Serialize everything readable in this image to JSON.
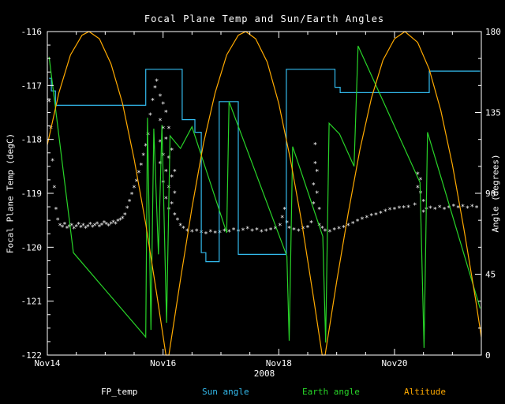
{
  "chart_data": {
    "type": "line+scatter",
    "title": "Focal Plane Temp and Sun/Earth Angles",
    "xlabel": "2008",
    "ylabel_left": "Focal Plane Temp (degC)",
    "ylabel_right": "Angle (degrees)",
    "x_unit": "days since Nov 14 2008",
    "x_range": [
      0,
      7.5
    ],
    "temp_range": [
      -122,
      -116
    ],
    "angle_range": [
      0,
      180
    ],
    "x_minor": 0.5,
    "temp_minor": 0.25,
    "angle_minor": 15,
    "x_ticks": [
      {
        "t": 0,
        "label": "Nov14"
      },
      {
        "t": 2,
        "label": "Nov16"
      },
      {
        "t": 4,
        "label": "Nov18"
      },
      {
        "t": 6,
        "label": "Nov20"
      }
    ],
    "left_ticks": [
      -116,
      -117,
      -118,
      -119,
      -120,
      -121,
      -122
    ],
    "right_ticks": [
      0,
      45,
      90,
      135,
      180
    ],
    "colors": {
      "background": "#000000",
      "axis": "#ffffff"
    },
    "grid": false,
    "legend_position": "bottom",
    "series": [
      {
        "name": "FP_temp",
        "type": "scatter",
        "marker": "*",
        "axis": "temp",
        "color": "#ffffff",
        "points": [
          [
            0.03,
            -117.3
          ],
          [
            0.06,
            -117.8
          ],
          [
            0.09,
            -118.4
          ],
          [
            0.12,
            -118.9
          ],
          [
            0.15,
            -119.3
          ],
          [
            0.18,
            -119.5
          ],
          [
            0.22,
            -119.6
          ],
          [
            0.26,
            -119.63
          ],
          [
            0.3,
            -119.58
          ],
          [
            0.34,
            -119.65
          ],
          [
            0.38,
            -119.62
          ],
          [
            0.42,
            -119.6
          ],
          [
            0.46,
            -119.66
          ],
          [
            0.5,
            -119.62
          ],
          [
            0.54,
            -119.58
          ],
          [
            0.58,
            -119.64
          ],
          [
            0.62,
            -119.6
          ],
          [
            0.66,
            -119.65
          ],
          [
            0.7,
            -119.62
          ],
          [
            0.74,
            -119.58
          ],
          [
            0.78,
            -119.63
          ],
          [
            0.82,
            -119.6
          ],
          [
            0.86,
            -119.57
          ],
          [
            0.9,
            -119.62
          ],
          [
            0.94,
            -119.59
          ],
          [
            0.98,
            -119.55
          ],
          [
            1.02,
            -119.58
          ],
          [
            1.06,
            -119.61
          ],
          [
            1.1,
            -119.57
          ],
          [
            1.14,
            -119.54
          ],
          [
            1.18,
            -119.57
          ],
          [
            1.22,
            -119.52
          ],
          [
            1.26,
            -119.5
          ],
          [
            1.3,
            -119.47
          ],
          [
            1.34,
            -119.4
          ],
          [
            1.38,
            -119.28
          ],
          [
            1.42,
            -119.15
          ],
          [
            1.46,
            -119.02
          ],
          [
            1.5,
            -118.9
          ],
          [
            1.54,
            -118.78
          ],
          [
            1.58,
            -118.62
          ],
          [
            1.62,
            -118.48
          ],
          [
            1.66,
            -118.3
          ],
          [
            1.7,
            -118.12
          ],
          [
            1.74,
            -117.92
          ],
          [
            1.78,
            -117.55
          ],
          [
            1.82,
            -117.28
          ],
          [
            1.86,
            -117.05
          ],
          [
            1.89,
            -116.92
          ],
          [
            1.95,
            -117.2
          ],
          [
            1.95,
            -117.65
          ],
          [
            1.95,
            -118.05
          ],
          [
            1.95,
            -118.45
          ],
          [
            2.0,
            -117.35
          ],
          [
            2.0,
            -117.8
          ],
          [
            2.0,
            -118.3
          ],
          [
            2.0,
            -118.8
          ],
          [
            2.05,
            -117.5
          ],
          [
            2.05,
            -118.0
          ],
          [
            2.05,
            -118.6
          ],
          [
            2.05,
            -119.1
          ],
          [
            2.1,
            -117.8
          ],
          [
            2.1,
            -118.35
          ],
          [
            2.1,
            -118.9
          ],
          [
            2.1,
            -119.3
          ],
          [
            2.15,
            -118.2
          ],
          [
            2.15,
            -118.7
          ],
          [
            2.15,
            -119.2
          ],
          [
            2.2,
            -118.6
          ],
          [
            2.2,
            -119.0
          ],
          [
            2.2,
            -119.4
          ],
          [
            2.25,
            -119.5
          ],
          [
            2.3,
            -119.6
          ],
          [
            2.35,
            -119.65
          ],
          [
            2.42,
            -119.7
          ],
          [
            2.5,
            -119.72
          ],
          [
            2.58,
            -119.7
          ],
          [
            2.66,
            -119.73
          ],
          [
            2.74,
            -119.75
          ],
          [
            2.82,
            -119.72
          ],
          [
            2.9,
            -119.74
          ],
          [
            2.98,
            -119.73
          ],
          [
            3.06,
            -119.7
          ],
          [
            3.14,
            -119.72
          ],
          [
            3.22,
            -119.68
          ],
          [
            3.3,
            -119.71
          ],
          [
            3.38,
            -119.69
          ],
          [
            3.46,
            -119.66
          ],
          [
            3.54,
            -119.7
          ],
          [
            3.62,
            -119.68
          ],
          [
            3.7,
            -119.72
          ],
          [
            3.78,
            -119.7
          ],
          [
            3.86,
            -119.68
          ],
          [
            3.94,
            -119.66
          ],
          [
            4.02,
            -119.6
          ],
          [
            4.06,
            -119.45
          ],
          [
            4.1,
            -119.3
          ],
          [
            4.14,
            -119.55
          ],
          [
            4.18,
            -119.65
          ],
          [
            4.26,
            -119.68
          ],
          [
            4.34,
            -119.7
          ],
          [
            4.42,
            -119.66
          ],
          [
            4.5,
            -119.64
          ],
          [
            4.56,
            -119.55
          ],
          [
            4.6,
            -119.2
          ],
          [
            4.6,
            -118.85
          ],
          [
            4.63,
            -118.45
          ],
          [
            4.63,
            -118.1
          ],
          [
            4.66,
            -118.6
          ],
          [
            4.66,
            -119.0
          ],
          [
            4.7,
            -119.3
          ],
          [
            4.7,
            -119.6
          ],
          [
            4.75,
            -119.65
          ],
          [
            4.8,
            -119.7
          ],
          [
            4.88,
            -119.72
          ],
          [
            4.96,
            -119.68
          ],
          [
            5.04,
            -119.66
          ],
          [
            5.12,
            -119.64
          ],
          [
            5.2,
            -119.6
          ],
          [
            5.28,
            -119.56
          ],
          [
            5.36,
            -119.52
          ],
          [
            5.44,
            -119.48
          ],
          [
            5.52,
            -119.45
          ],
          [
            5.6,
            -119.42
          ],
          [
            5.68,
            -119.4
          ],
          [
            5.76,
            -119.37
          ],
          [
            5.84,
            -119.34
          ],
          [
            5.92,
            -119.31
          ],
          [
            6.0,
            -119.3
          ],
          [
            6.08,
            -119.28
          ],
          [
            6.16,
            -119.27
          ],
          [
            6.24,
            -119.26
          ],
          [
            6.35,
            -119.22
          ],
          [
            6.4,
            -118.9
          ],
          [
            6.4,
            -118.65
          ],
          [
            6.45,
            -118.75
          ],
          [
            6.45,
            -119.0
          ],
          [
            6.5,
            -119.15
          ],
          [
            6.5,
            -119.35
          ],
          [
            6.55,
            -119.3
          ],
          [
            6.62,
            -119.28
          ],
          [
            6.7,
            -119.3
          ],
          [
            6.78,
            -119.26
          ],
          [
            6.86,
            -119.3
          ],
          [
            6.94,
            -119.27
          ],
          [
            7.02,
            -119.24
          ],
          [
            7.1,
            -119.27
          ],
          [
            7.18,
            -119.25
          ],
          [
            7.26,
            -119.28
          ],
          [
            7.34,
            -119.25
          ],
          [
            7.42,
            -119.27
          ]
        ]
      },
      {
        "name": "Sun angle",
        "type": "line",
        "axis": "angle",
        "color": "#33bbee",
        "points": [
          [
            0.03,
            154
          ],
          [
            0.07,
            154
          ],
          [
            0.07,
            147
          ],
          [
            0.14,
            147
          ],
          [
            0.14,
            139
          ],
          [
            1.7,
            139
          ],
          [
            1.7,
            159
          ],
          [
            2.33,
            159
          ],
          [
            2.33,
            131
          ],
          [
            2.55,
            131
          ],
          [
            2.55,
            124
          ],
          [
            2.66,
            124
          ],
          [
            2.66,
            57
          ],
          [
            2.74,
            57
          ],
          [
            2.74,
            52
          ],
          [
            2.97,
            52
          ],
          [
            2.97,
            141
          ],
          [
            3.3,
            141
          ],
          [
            3.3,
            56
          ],
          [
            4.13,
            56
          ],
          [
            4.13,
            159
          ],
          [
            4.97,
            159
          ],
          [
            4.97,
            149
          ],
          [
            5.06,
            149
          ],
          [
            5.06,
            146
          ],
          [
            6.6,
            146
          ],
          [
            6.6,
            158
          ],
          [
            7.48,
            158
          ]
        ]
      },
      {
        "name": "Earth angle",
        "type": "line",
        "axis": "angle",
        "color": "#28d428",
        "points": [
          [
            0.03,
            166
          ],
          [
            0.1,
            148
          ],
          [
            0.45,
            57
          ],
          [
            1.7,
            10
          ],
          [
            1.73,
            132
          ],
          [
            1.79,
            14
          ],
          [
            1.84,
            126
          ],
          [
            1.92,
            56
          ],
          [
            1.98,
            128
          ],
          [
            2.06,
            18
          ],
          [
            2.12,
            122
          ],
          [
            2.3,
            115
          ],
          [
            2.5,
            127
          ],
          [
            3.1,
            68
          ],
          [
            3.14,
            141
          ],
          [
            4.14,
            55
          ],
          [
            4.18,
            8
          ],
          [
            4.24,
            116
          ],
          [
            4.76,
            66
          ],
          [
            4.81,
            7
          ],
          [
            4.87,
            129
          ],
          [
            5.05,
            123
          ],
          [
            5.3,
            105
          ],
          [
            5.37,
            172
          ],
          [
            6.44,
            96
          ],
          [
            6.51,
            4
          ],
          [
            6.57,
            124
          ],
          [
            7.48,
            26
          ]
        ]
      },
      {
        "name": "Altitude",
        "type": "line",
        "axis": "angle",
        "color": "#ffaa00",
        "points": [
          [
            0.0,
            117
          ],
          [
            0.2,
            146
          ],
          [
            0.4,
            167
          ],
          [
            0.6,
            178
          ],
          [
            0.72,
            180
          ],
          [
            0.9,
            176
          ],
          [
            1.1,
            162
          ],
          [
            1.3,
            140
          ],
          [
            1.5,
            109
          ],
          [
            1.7,
            73
          ],
          [
            1.9,
            32
          ],
          [
            2.05,
            0
          ],
          [
            2.1,
            0
          ],
          [
            2.3,
            42
          ],
          [
            2.5,
            82
          ],
          [
            2.7,
            118
          ],
          [
            2.9,
            146
          ],
          [
            3.1,
            167
          ],
          [
            3.3,
            178
          ],
          [
            3.43,
            180
          ],
          [
            3.6,
            176
          ],
          [
            3.8,
            163
          ],
          [
            4.0,
            140
          ],
          [
            4.2,
            109
          ],
          [
            4.4,
            73
          ],
          [
            4.6,
            32
          ],
          [
            4.75,
            0
          ],
          [
            4.8,
            0
          ],
          [
            5.0,
            41
          ],
          [
            5.2,
            79
          ],
          [
            5.4,
            114
          ],
          [
            5.6,
            143
          ],
          [
            5.8,
            164
          ],
          [
            6.0,
            176
          ],
          [
            6.18,
            180
          ],
          [
            6.4,
            174
          ],
          [
            6.6,
            159
          ],
          [
            6.8,
            136
          ],
          [
            7.0,
            106
          ],
          [
            7.2,
            70
          ],
          [
            7.4,
            31
          ],
          [
            7.5,
            10
          ]
        ]
      }
    ]
  }
}
